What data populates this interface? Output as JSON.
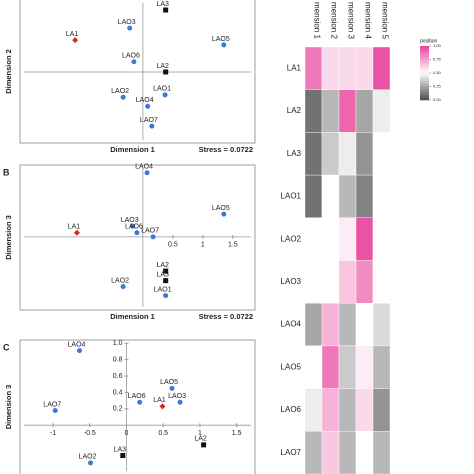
{
  "chart_data": [
    {
      "type": "scatter",
      "xlabel": "Dimension 1",
      "ylabel": "Dimension 2",
      "annotation": "Stress = 0.0722",
      "point_labels": [
        "LA3",
        "LAO3",
        "LAO5",
        "LA1",
        "LAO6",
        "LA2",
        "LAO2",
        "LAO1",
        "LAO4",
        "LAO7"
      ],
      "x": [
        0.38,
        -0.22,
        1.35,
        -1.13,
        -0.15,
        0.38,
        -0.33,
        0.37,
        0.08,
        0.15
      ],
      "y": [
        1.03,
        0.73,
        0.45,
        0.53,
        0.17,
        0.0,
        -0.42,
        -0.38,
        -0.57,
        -0.9
      ],
      "colors": [
        "#111111",
        "#3a7bd5",
        "#3a7bd5",
        "#d62728",
        "#3a7bd5",
        "#111111",
        "#3a7bd5",
        "#3a7bd5",
        "#3a7bd5",
        "#3a7bd5"
      ],
      "markers": [
        "square",
        "circle",
        "circle",
        "diamond",
        "circle",
        "square",
        "circle",
        "circle",
        "circle",
        "circle"
      ],
      "xlim": [
        -2.05,
        1.87
      ],
      "ylim": [
        -1.18,
        1.23
      ]
    },
    {
      "type": "scatter",
      "panel": "B",
      "xlabel": "Dimension 1",
      "ylabel": "Dimension 3",
      "annotation": "Stress = 0.0722",
      "point_labels": [
        "LAO4",
        "LAO5",
        "LAO3",
        "LAO6",
        "LA1",
        "LAO7",
        "LA2",
        "LA3",
        "LAO2",
        "LAO1"
      ],
      "x": [
        0.07,
        1.35,
        -0.17,
        -0.1,
        -1.1,
        0.17,
        0.38,
        0.38,
        -0.33,
        0.38
      ],
      "y": [
        1.07,
        0.38,
        0.18,
        0.07,
        0.07,
        0.0,
        -0.57,
        -0.73,
        -0.83,
        -0.98
      ],
      "colors": [
        "#3a7bd5",
        "#3a7bd5",
        "#3a7bd5",
        "#3a7bd5",
        "#d62728",
        "#3a7bd5",
        "#111111",
        "#111111",
        "#3a7bd5",
        "#3a7bd5"
      ],
      "markers": [
        "circle",
        "circle",
        "circle",
        "circle",
        "diamond",
        "circle",
        "square",
        "square",
        "circle",
        "circle"
      ],
      "xlim": [
        -2.05,
        1.87
      ],
      "ylim": [
        -1.22,
        1.2
      ],
      "xticks": [
        0.5,
        1,
        1.5
      ]
    },
    {
      "type": "scatter",
      "panel": "C",
      "ylabel": "Dimension 3",
      "point_labels": [
        "LAO4",
        "LAO5",
        "LAO7",
        "LAO6",
        "LA1",
        "LAO3",
        "LA2",
        "LAO2",
        "LA3"
      ],
      "x": [
        -0.64,
        0.62,
        -0.97,
        0.18,
        0.49,
        0.73,
        1.05,
        -0.49,
        -0.05
      ],
      "y": [
        0.91,
        0.45,
        0.18,
        0.28,
        0.23,
        0.28,
        -0.24,
        -0.46,
        -0.37
      ],
      "colors": [
        "#3a7bd5",
        "#3a7bd5",
        "#3a7bd5",
        "#3a7bd5",
        "#d62728",
        "#3a7bd5",
        "#111111",
        "#3a7bd5",
        "#111111"
      ],
      "markers": [
        "circle",
        "circle",
        "circle",
        "circle",
        "diamond",
        "circle",
        "square",
        "circle",
        "square"
      ],
      "xlim": [
        -1.45,
        1.75
      ],
      "ylim": [
        -0.62,
        1.04
      ],
      "xticks": [
        -1,
        -0.5,
        0,
        0.5,
        1,
        1.5
      ],
      "yticks": [
        {
          "value": 1,
          "label": "1.0"
        },
        0.8,
        0.6,
        0.4,
        0.2
      ]
    },
    {
      "type": "heatmap",
      "columns": [
        "mension 1",
        "mension 2",
        "mension 3",
        "mension 4",
        "mension 5"
      ],
      "rows": [
        "LA1",
        "LA2",
        "LA3",
        "LAO1",
        "LAO2",
        "LAO3",
        "LAO4",
        "LAO5",
        "LAO6",
        "LAO7"
      ],
      "row_label_colors": [
        "#c2187a",
        "#111111",
        "#111111",
        "#6a3fb0",
        "#6a3fb0",
        "#6a3fb0",
        "#6a3fb0",
        "#6a3fb0",
        "#6a3fb0",
        "#6a3fb0"
      ],
      "values": [
        [
          0.85,
          0.6,
          0.6,
          0.6,
          0.95
        ],
        [
          0.1,
          0.3,
          0.9,
          0.25,
          0.45
        ],
        [
          0.1,
          0.35,
          0.45,
          0.2,
          0.5
        ],
        [
          0.1,
          0.5,
          0.3,
          0.15,
          0.5
        ],
        [
          0.5,
          0.5,
          0.55,
          0.95,
          0.5
        ],
        [
          0.5,
          0.5,
          0.65,
          0.8,
          0.5
        ],
        [
          0.25,
          0.7,
          0.3,
          0.5,
          0.4
        ],
        [
          0.5,
          0.85,
          0.35,
          0.55,
          0.3
        ],
        [
          0.45,
          0.7,
          0.3,
          0.6,
          0.2
        ],
        [
          0.3,
          0.65,
          0.3,
          0.5,
          0.3
        ]
      ],
      "colorbar_title": "position",
      "zlim": [
        0,
        1
      ],
      "colorbar_ticks": [
        {
          "value": 1,
          "label": "1.00"
        },
        {
          "value": 0.75,
          "label": "0.75"
        },
        {
          "value": 0.5,
          "label": "0.50"
        },
        {
          "value": 0.25,
          "label": "0.25"
        },
        {
          "value": 0,
          "label": "0.00"
        }
      ],
      "low_color": "#4d4d4d",
      "mid_color": "#ffffff",
      "high_color": "#e8409a"
    }
  ]
}
